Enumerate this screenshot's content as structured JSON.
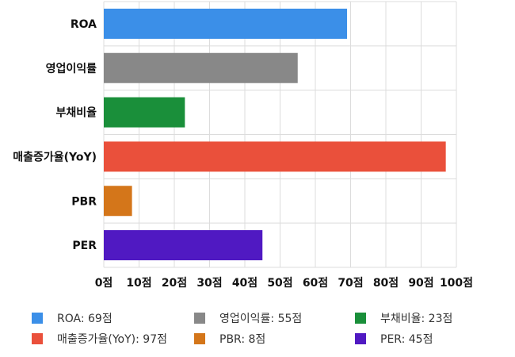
{
  "chart_data": {
    "type": "bar",
    "orientation": "horizontal",
    "categories": [
      "ROA",
      "영업이익률",
      "부채비율",
      "매출증가율(YoY)",
      "PBR",
      "PER"
    ],
    "values": [
      69,
      55,
      23,
      97,
      8,
      45
    ],
    "colors": [
      "#3b8fe8",
      "#888888",
      "#1a8f3a",
      "#ea503b",
      "#d4761a",
      "#5019c2"
    ],
    "xlim": [
      0,
      100
    ],
    "xticks": [
      "0점",
      "10점",
      "20점",
      "30점",
      "40점",
      "50점",
      "60점",
      "70점",
      "80점",
      "90점",
      "100점"
    ],
    "grid": true,
    "legend_position": "bottom",
    "legend": [
      {
        "label": "ROA: 69점",
        "color": "#3b8fe8"
      },
      {
        "label": "영업이익률: 55점",
        "color": "#888888"
      },
      {
        "label": "부채비율: 23점",
        "color": "#1a8f3a"
      },
      {
        "label": "매출증가율(YoY): 97점",
        "color": "#ea503b"
      },
      {
        "label": "PBR: 8점",
        "color": "#d4761a"
      },
      {
        "label": "PER: 45점",
        "color": "#5019c2"
      }
    ]
  }
}
